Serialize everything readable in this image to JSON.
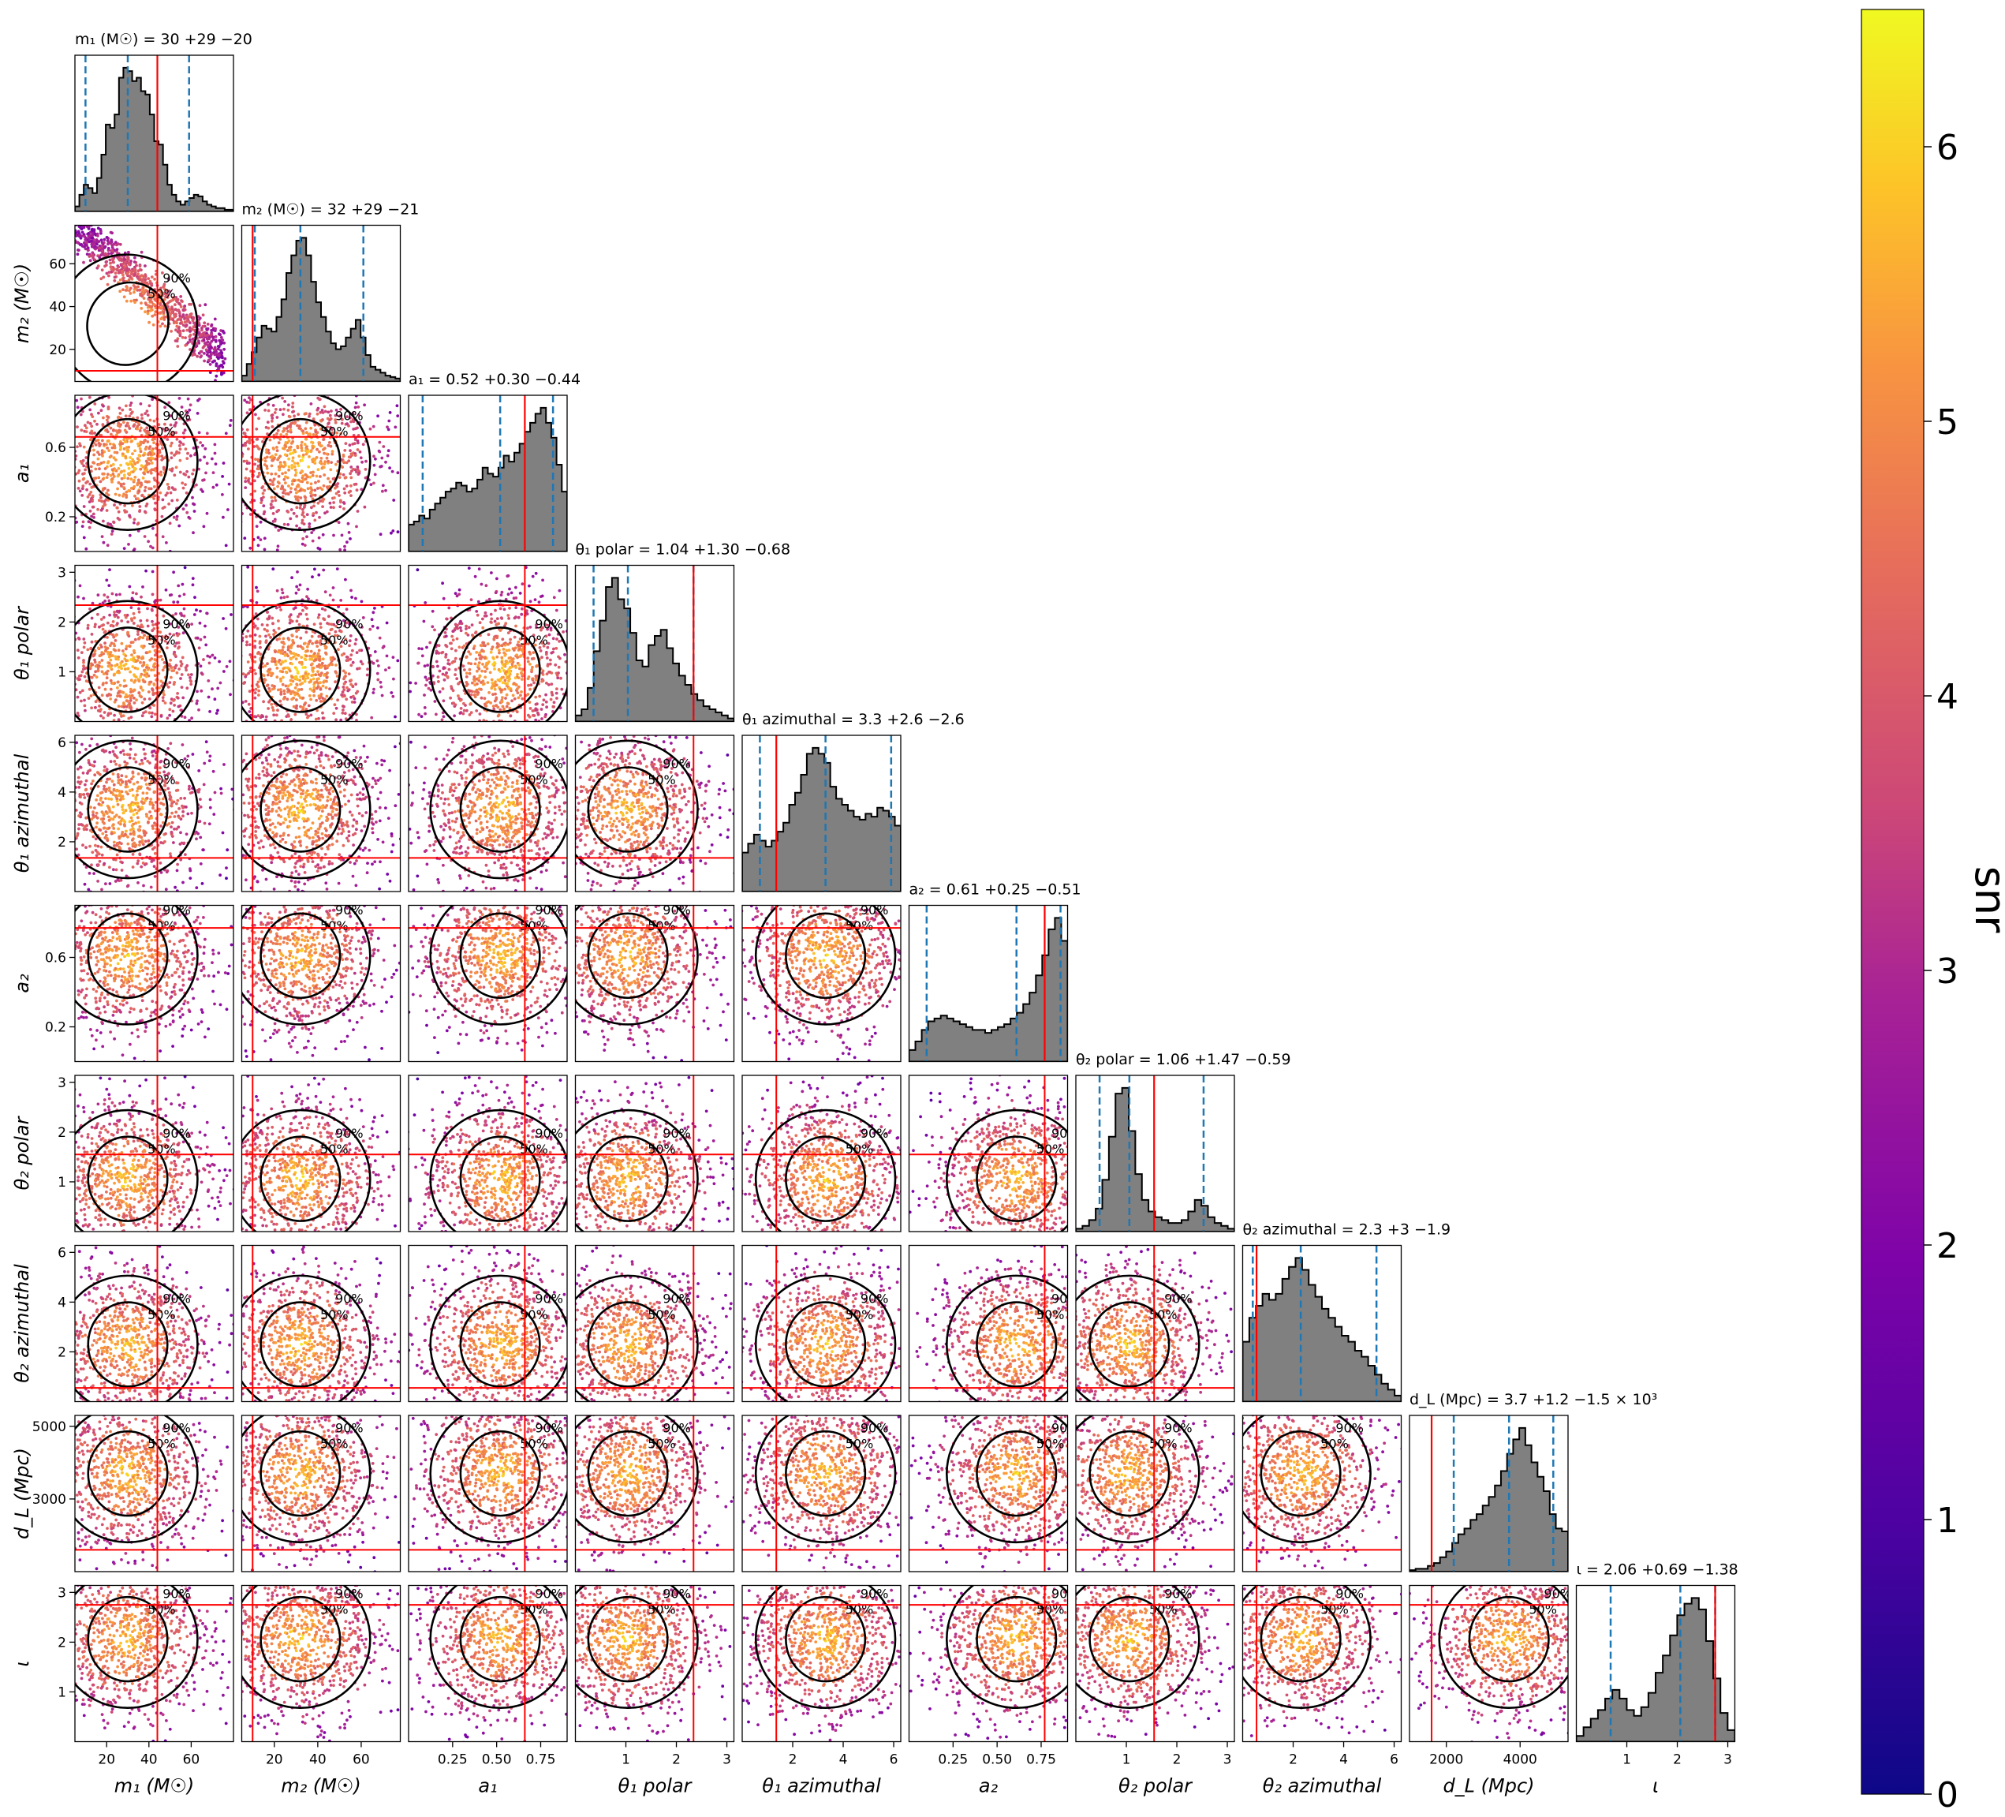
{
  "chart_data": {
    "type": "scatter",
    "kind": "corner-plot",
    "colorbar": {
      "label": "snr",
      "range": [
        0,
        6.5
      ],
      "ticks": [
        0,
        1,
        2,
        3,
        4,
        5,
        6
      ],
      "colormap": "plasma"
    },
    "contour_levels": [
      "50%",
      "90%"
    ],
    "colors": {
      "histogram_fill": "#808080",
      "histogram_edge": "#000000",
      "truth_line": "#ff0000",
      "quantile_line": "#1f77b4",
      "contour": "#000000"
    },
    "parameters": [
      {
        "key": "m1",
        "label": "m₁ (M☉)",
        "title": "m₁ (M☉) = 30 +29 −20",
        "range": [
          5,
          80
        ],
        "ticks": [
          20,
          40,
          60
        ],
        "truth": 44,
        "quantiles": [
          10,
          30,
          59
        ],
        "hist": [
          3,
          10,
          16,
          14,
          11,
          20,
          34,
          52,
          50,
          58,
          80,
          86,
          84,
          78,
          80,
          72,
          70,
          58,
          42,
          40,
          28,
          16,
          10,
          6,
          4,
          6,
          8,
          10,
          9,
          6,
          4,
          3,
          2,
          2,
          1,
          1
        ]
      },
      {
        "key": "m2",
        "label": "m₂ (M☉)",
        "title": "m₂ (M☉) = 32 +29 −21",
        "range": [
          5,
          78
        ],
        "ticks": [
          20,
          40,
          60
        ],
        "truth": 10,
        "quantiles": [
          11,
          32,
          61
        ],
        "hist": [
          4,
          12,
          20,
          30,
          38,
          36,
          34,
          44,
          56,
          74,
          86,
          96,
          98,
          86,
          68,
          54,
          44,
          34,
          26,
          22,
          24,
          30,
          36,
          42,
          30,
          18,
          10,
          8,
          6,
          4,
          3,
          2
        ]
      },
      {
        "key": "a1",
        "label": "a₁",
        "title": "a₁ = 0.52 +0.30 −0.44",
        "range": [
          0,
          0.9
        ],
        "ticks": [
          0.25,
          0.5,
          0.75
        ],
        "truth": 0.66,
        "quantiles": [
          0.08,
          0.52,
          0.82
        ],
        "hist": [
          18,
          20,
          24,
          22,
          28,
          32,
          36,
          40,
          42,
          46,
          44,
          40,
          42,
          48,
          56,
          52,
          50,
          56,
          64,
          60,
          66,
          72,
          80,
          86,
          92,
          96,
          86,
          76,
          58,
          40
        ]
      },
      {
        "key": "theta1p",
        "label": "θ₁ polar",
        "title": "θ₁ polar = 1.04 +1.30 −0.68",
        "range": [
          0,
          3.14
        ],
        "ticks": [
          1,
          2,
          3
        ],
        "truth": 2.34,
        "quantiles": [
          0.36,
          1.04,
          2.34
        ],
        "hist": [
          4,
          8,
          22,
          46,
          66,
          88,
          94,
          80,
          74,
          58,
          40,
          36,
          50,
          56,
          60,
          48,
          38,
          30,
          24,
          18,
          14,
          10,
          8,
          6,
          4,
          2
        ]
      },
      {
        "key": "theta1a",
        "label": "θ₁ azimuthal",
        "title": "θ₁ azimuthal = 3.3 +2.6 −2.6",
        "range": [
          0,
          6.28
        ],
        "ticks": [
          2,
          4,
          6
        ],
        "truth": 1.35,
        "quantiles": [
          0.7,
          3.3,
          5.9
        ],
        "hist": [
          26,
          32,
          38,
          34,
          30,
          34,
          40,
          46,
          58,
          66,
          78,
          92,
          96,
          92,
          86,
          70,
          62,
          58,
          54,
          50,
          48,
          52,
          50,
          56,
          54,
          50,
          44
        ]
      },
      {
        "key": "a2",
        "label": "a₂",
        "title": "a₂ = 0.61 +0.25 −0.51",
        "range": [
          0,
          0.9
        ],
        "ticks": [
          0.25,
          0.5,
          0.75
        ],
        "truth": 0.77,
        "quantiles": [
          0.1,
          0.61,
          0.86
        ],
        "hist": [
          8,
          14,
          22,
          28,
          30,
          32,
          30,
          28,
          26,
          24,
          22,
          22,
          20,
          22,
          24,
          26,
          30,
          34,
          40,
          48,
          60,
          74,
          92,
          100,
          84
        ]
      },
      {
        "key": "theta2p",
        "label": "θ₂ polar",
        "title": "θ₂ polar = 1.06 +1.47 −0.59",
        "range": [
          0,
          3.14
        ],
        "ticks": [
          1,
          2,
          3
        ],
        "truth": 1.55,
        "quantiles": [
          0.47,
          1.06,
          2.53
        ],
        "hist": [
          2,
          4,
          8,
          16,
          36,
          66,
          96,
          100,
          70,
          40,
          22,
          14,
          10,
          8,
          6,
          6,
          8,
          14,
          22,
          18,
          10,
          6,
          4,
          2
        ]
      },
      {
        "key": "theta2a",
        "label": "θ₂ azimuthal",
        "title": "θ₂ azimuthal = 2.3 +3 −1.9",
        "range": [
          0,
          6.28
        ],
        "ticks": [
          2,
          4,
          6
        ],
        "truth": 0.55,
        "quantiles": [
          0.4,
          2.3,
          5.3
        ],
        "hist": [
          40,
          56,
          64,
          72,
          68,
          72,
          82,
          90,
          96,
          88,
          78,
          70,
          62,
          56,
          50,
          44,
          40,
          34,
          30,
          24,
          18,
          12,
          8,
          4
        ]
      },
      {
        "key": "dL",
        "label": "d_L (Mpc)",
        "title": "d_L (Mpc) = 3.7 +1.2 −1.5 × 10³",
        "range": [
          1000,
          5300
        ],
        "ticks": [
          2000,
          4000
        ],
        "truth": 1600,
        "quantiles": [
          2200,
          3700,
          4900
        ],
        "hist": [
          1,
          2,
          2,
          4,
          6,
          10,
          14,
          20,
          26,
          30,
          36,
          40,
          46,
          52,
          60,
          70,
          82,
          92,
          100,
          88,
          76,
          66,
          56,
          40,
          30,
          28
        ]
      },
      {
        "key": "iota",
        "label": "ι",
        "title": "ι = 2.06 +0.69 −1.38",
        "range": [
          0,
          3.14
        ],
        "ticks": [
          1,
          2,
          3
        ],
        "truth": 2.75,
        "quantiles": [
          0.68,
          2.06,
          2.75
        ],
        "hist": [
          4,
          10,
          16,
          22,
          30,
          36,
          30,
          22,
          18,
          24,
          34,
          48,
          60,
          74,
          88,
          96,
          100,
          92,
          70,
          44,
          20,
          8
        ]
      }
    ],
    "x_tick_labels": {
      "m1": [
        "20",
        "40",
        "60"
      ],
      "m2": [
        "20",
        "40",
        "60"
      ],
      "a1": [
        "0.25",
        "0.50",
        "0.75"
      ],
      "theta1p": [
        "1",
        "2",
        "3"
      ],
      "theta1a": [
        "2",
        "4",
        "6"
      ],
      "a2": [
        "0.25",
        "0.50",
        "0.75"
      ],
      "theta2p": [
        "1",
        "2",
        "3"
      ],
      "theta2a": [
        "2",
        "4",
        "6"
      ],
      "dL": [
        "2000",
        "4000"
      ],
      "iota": [
        "1",
        "2",
        "3"
      ]
    },
    "y_tick_labels": {
      "m2": {
        "values": [
          20,
          40,
          60
        ],
        "labels": [
          "20",
          "40",
          "60"
        ]
      },
      "a1": {
        "values": [
          0.2,
          0.6
        ],
        "labels": [
          "0.2",
          "0.6"
        ]
      },
      "theta1p": {
        "values": [
          1,
          2,
          3
        ],
        "labels": [
          "1",
          "2",
          "3"
        ]
      },
      "theta1a": {
        "values": [
          2,
          4,
          6
        ],
        "labels": [
          "2",
          "4",
          "6"
        ]
      },
      "a2": {
        "values": [
          0.2,
          0.6
        ],
        "labels": [
          "0.2",
          "0.6"
        ]
      },
      "theta2p": {
        "values": [
          1,
          2,
          3
        ],
        "labels": [
          "1",
          "2",
          "3"
        ]
      },
      "theta2a": {
        "values": [
          2,
          4,
          6
        ],
        "labels": [
          "2",
          "4",
          "6"
        ]
      },
      "dL": {
        "values": [
          3000,
          5000
        ],
        "labels": [
          "3000",
          "5000"
        ]
      },
      "iota": {
        "values": [
          1,
          2,
          3
        ],
        "labels": [
          "1",
          "2",
          "3"
        ]
      }
    }
  }
}
